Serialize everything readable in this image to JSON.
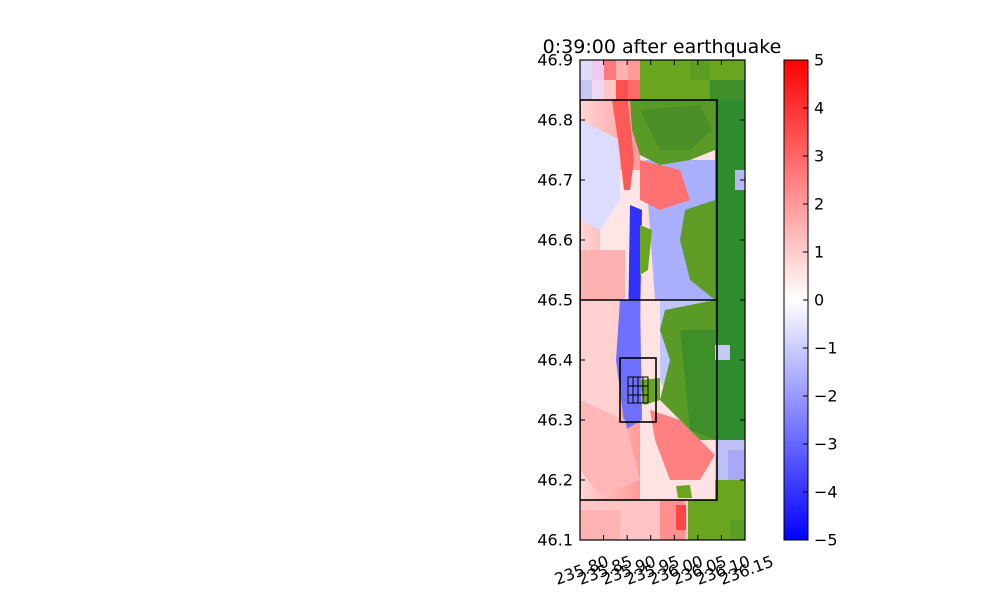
{
  "chart_data": {
    "type": "heatmap",
    "title": "0:39:00 after earthquake",
    "xlabel": "",
    "ylabel": "",
    "xlim": [
      235.8,
      236.15
    ],
    "ylim": [
      46.1,
      46.9
    ],
    "x_ticks": [
      "235.80",
      "235.85",
      "235.90",
      "235.95",
      "236.00",
      "236.05",
      "236.10",
      "236.15"
    ],
    "y_ticks": [
      "46.1",
      "46.2",
      "46.3",
      "46.4",
      "46.5",
      "46.6",
      "46.7",
      "46.8",
      "46.9"
    ],
    "grid": false,
    "colorbar": {
      "min": -5,
      "max": 5,
      "ticks": [
        "−5",
        "−4",
        "−3",
        "−2",
        "−1",
        "0",
        "1",
        "2",
        "3",
        "4",
        "5"
      ],
      "colormap": [
        "#0000ff",
        "#ffffff",
        "#ff0000"
      ]
    },
    "land_colors": [
      "#2e8b2e",
      "#6aa520"
    ],
    "grid_patches": [
      {
        "lon": [
          235.8,
          236.08
        ],
        "lat": [
          46.165,
          46.835
        ]
      },
      {
        "lon": [
          235.8,
          236.08
        ],
        "lat": [
          46.5,
          46.5
        ]
      },
      {
        "lon": [
          235.885,
          235.96
        ],
        "lat": [
          46.295,
          46.405
        ]
      },
      {
        "lon": [
          235.9,
          235.94
        ],
        "lat": [
          46.33,
          46.37
        ]
      }
    ]
  }
}
